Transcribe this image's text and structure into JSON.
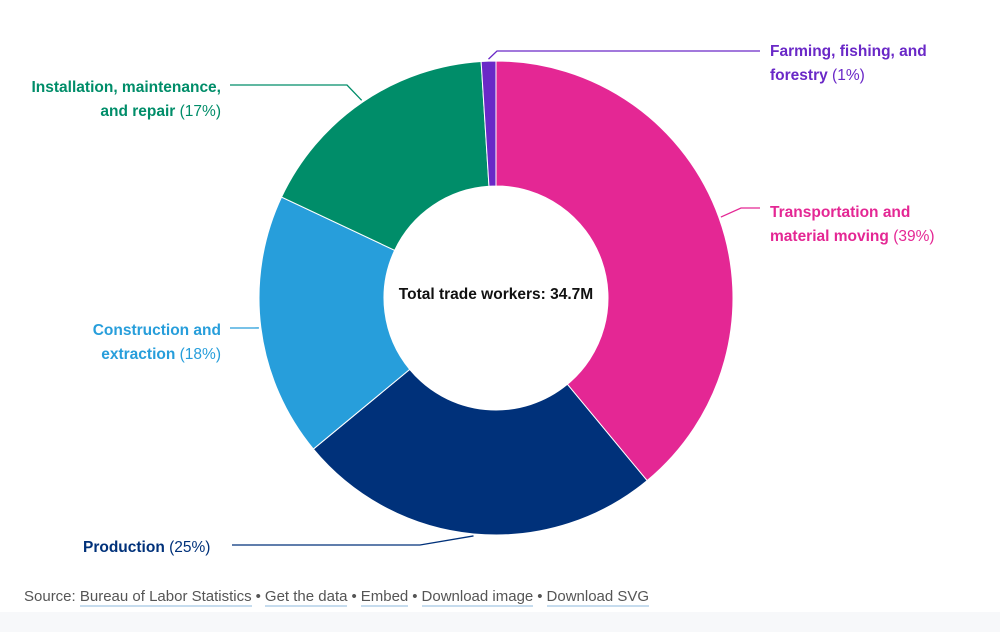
{
  "chart_data": {
    "type": "pie",
    "subtype": "donut",
    "title": "",
    "center_label": "Total trade workers: 34.7M",
    "total": "34.7M",
    "start": "top",
    "direction": "clockwise",
    "slices": [
      {
        "name": "Transportation and material moving",
        "label_bold": "Transportation and material moving",
        "pct_text": "(39%)",
        "value": 39,
        "color": "#e42794"
      },
      {
        "name": "Production",
        "label_bold": "Production",
        "pct_text": "(25%)",
        "value": 25,
        "color": "#00317a"
      },
      {
        "name": "Construction and extraction",
        "label_bold": "Construction and extraction",
        "pct_text": "(18%)",
        "value": 18,
        "color": "#279edb"
      },
      {
        "name": "Installation, maintenance, and repair",
        "label_bold": "Installation, maintenance, and repair",
        "pct_text": "(17%)",
        "value": 17,
        "color": "#008d69"
      },
      {
        "name": "Farming, fishing, and forestry",
        "label_bold": "Farming, fishing, and forestry",
        "pct_text": "(1%)",
        "value": 1,
        "color": "#6a28c7"
      }
    ]
  },
  "footer": {
    "source_prefix": "Source:",
    "links": [
      "Bureau of Labor Statistics",
      "Get the data",
      "Embed",
      "Download image",
      "Download SVG"
    ],
    "separator": "•"
  }
}
